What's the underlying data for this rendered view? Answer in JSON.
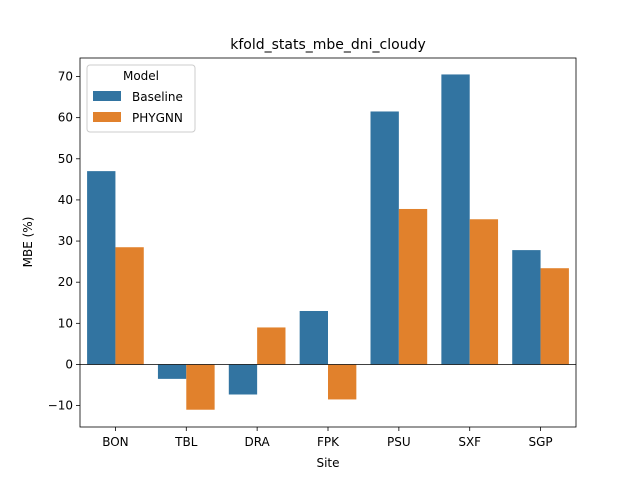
{
  "chart_data": {
    "type": "bar",
    "title": "kfold_stats_mbe_dni_cloudy",
    "xlabel": "Site",
    "ylabel": "MBE (%)",
    "categories": [
      "BON",
      "TBL",
      "DRA",
      "FPK",
      "PSU",
      "SXF",
      "SGP"
    ],
    "series": [
      {
        "name": "Baseline",
        "color": "#3274a1",
        "values": [
          47.0,
          -3.5,
          -7.3,
          13.0,
          61.5,
          70.5,
          27.8
        ]
      },
      {
        "name": "PHYGNN",
        "color": "#e1812c",
        "values": [
          28.5,
          -11.0,
          9.0,
          -8.5,
          37.8,
          35.3,
          23.4
        ]
      }
    ],
    "ylim": [
      -15.2,
      74.5
    ],
    "yticks": [
      -10,
      0,
      10,
      20,
      30,
      40,
      50,
      60,
      70
    ],
    "legend": {
      "title": "Model",
      "placement": "top-left"
    },
    "grid": false
  }
}
